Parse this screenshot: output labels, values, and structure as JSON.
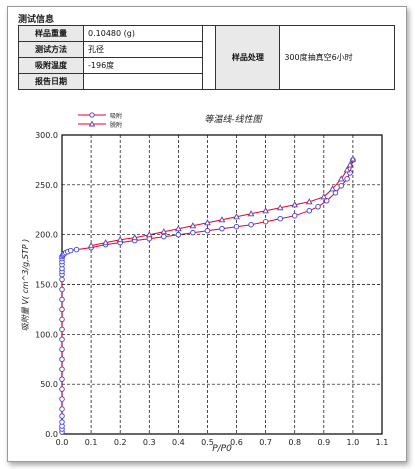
{
  "section_title": "测试信息",
  "info": {
    "sample_mass_label": "样品重量",
    "sample_mass_value": "0.10480 (g)",
    "method_label": "测试方法",
    "method_value": "孔径",
    "temp_label": "吸附温度",
    "temp_value": "-196度",
    "date_label": "报告日期",
    "date_value": "",
    "treatment_label": "样品处理",
    "treatment_value": "300度抽真空6小时"
  },
  "colors": {
    "adsorption": "#e8002c",
    "desorption": "#5a3ea8",
    "marker": "#3d3fd6"
  },
  "chart_data": {
    "type": "line",
    "title": "等温线-线性图",
    "xlabel": "P/P0",
    "ylabel": "吸附量 V( cm^3/g,STP )",
    "xlim": [
      0,
      1.1
    ],
    "ylim": [
      0,
      300
    ],
    "x_ticks": [
      "0.0",
      "0.1",
      "0.2",
      "0.3",
      "0.4",
      "0.5",
      "0.6",
      "0.7",
      "0.8",
      "0.9",
      "1.0",
      "1.1"
    ],
    "y_ticks": [
      "0.0",
      "50.0",
      "100.0",
      "150.0",
      "200.0",
      "250.0",
      "300.0"
    ],
    "grid": true,
    "legend_position": "top-left",
    "series": [
      {
        "name": "吸附",
        "marker": "circle",
        "x": [
          0.0,
          0.0,
          0.0,
          0.0,
          0.0,
          0.0,
          0.0,
          0.0,
          0.0,
          0.0,
          0.0,
          0.0,
          0.0,
          0.0,
          0.0,
          0.0,
          0.0,
          0.0,
          0.0,
          0.0,
          0.0,
          0.0,
          0.0,
          0.0,
          0.0,
          0.0,
          0.003,
          0.005,
          0.008,
          0.013,
          0.02,
          0.03,
          0.05,
          0.1,
          0.15,
          0.2,
          0.25,
          0.3,
          0.35,
          0.4,
          0.45,
          0.5,
          0.55,
          0.6,
          0.65,
          0.7,
          0.75,
          0.8,
          0.85,
          0.88,
          0.91,
          0.94,
          0.96,
          0.98,
          0.99,
          1.0
        ],
        "y": [
          2,
          5,
          8,
          12,
          18,
          25,
          35,
          45,
          55,
          65,
          75,
          85,
          95,
          105,
          115,
          125,
          135,
          145,
          155,
          160,
          163,
          166,
          170,
          173,
          176,
          178,
          179,
          180,
          181,
          182,
          183,
          184,
          185,
          187,
          190,
          192,
          194,
          196,
          198,
          200,
          202,
          204,
          206,
          208,
          210,
          213,
          216,
          219,
          224,
          228,
          234,
          242,
          249,
          256,
          262,
          275
        ]
      },
      {
        "name": "脱附",
        "marker": "triangle",
        "x": [
          1.0,
          0.99,
          0.98,
          0.96,
          0.93,
          0.9,
          0.85,
          0.8,
          0.75,
          0.7,
          0.65,
          0.6,
          0.55,
          0.5,
          0.45,
          0.4,
          0.35,
          0.3,
          0.25,
          0.2,
          0.15,
          0.1
        ],
        "y": [
          276,
          270,
          265,
          256,
          246,
          238,
          233,
          230,
          227,
          224,
          221,
          218,
          215,
          212,
          209,
          206,
          203,
          200,
          197,
          195,
          192,
          189
        ]
      }
    ]
  }
}
